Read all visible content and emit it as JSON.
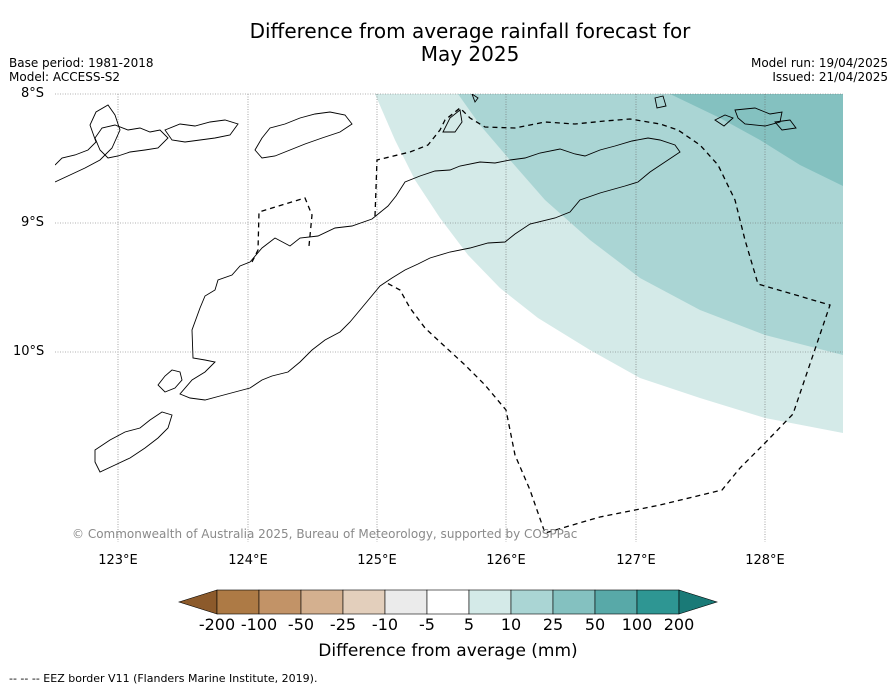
{
  "title_line1": "Difference from average rainfall forecast for",
  "title_line2": "May 2025",
  "base_period": "Base period: 1981-2018",
  "model": "Model: ACCESS-S2",
  "model_run": "Model run: 19/04/2025",
  "issued": "Issued: 21/04/2025",
  "lat_labels": [
    "8°S",
    "9°S",
    "10°S"
  ],
  "lon_labels": [
    "123°E",
    "124°E",
    "125°E",
    "126°E",
    "127°E",
    "128°E"
  ],
  "copyright": "© Commonwealth of Australia 2025, Bureau of Meteorology, supported by COSPPac",
  "colorbar": {
    "labels": [
      "-200",
      "-100",
      "-50",
      "-25",
      "-10",
      "-5",
      "5",
      "10",
      "25",
      "50",
      "100",
      "200"
    ],
    "colors": [
      "#8c5a2b",
      "#ad7a45",
      "#c29367",
      "#d4b08f",
      "#e3cfbc",
      "#ebebeb",
      "#ffffff",
      "#d4eae8",
      "#aad5d4",
      "#84c1c0",
      "#58a9a8",
      "#2e9693",
      "#1a7a77"
    ],
    "title": "Difference from average (mm)"
  },
  "footnote": "--  --  -- EEZ border V11 (Flanders Marine Institute, 2019).",
  "colors": {
    "band_5_10": "#d4eae8",
    "band_10_25": "#aad5d4",
    "band_25_50": "#84c1c0",
    "grid": "#666666"
  }
}
